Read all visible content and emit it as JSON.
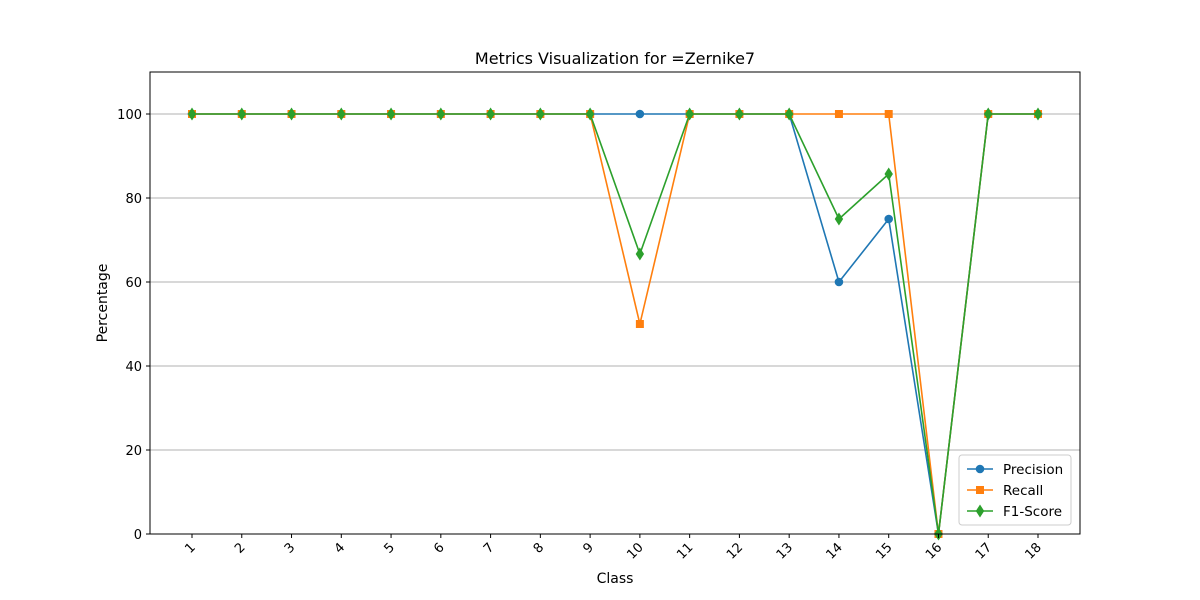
{
  "chart_data": {
    "type": "line",
    "title": "Metrics Visualization for =Zernike7",
    "xlabel": "Class",
    "ylabel": "Percentage",
    "categories": [
      "1",
      "2",
      "3",
      "4",
      "5",
      "6",
      "7",
      "8",
      "9",
      "10",
      "11",
      "12",
      "13",
      "14",
      "15",
      "16",
      "17",
      "18"
    ],
    "ylim": [
      0,
      110
    ],
    "yticks": [
      0,
      20,
      40,
      60,
      80,
      100
    ],
    "grid": "y-major",
    "legend_position": "lower right",
    "series": [
      {
        "name": "Precision",
        "color": "#1f77b4",
        "marker": "circle",
        "values": [
          100,
          100,
          100,
          100,
          100,
          100,
          100,
          100,
          100,
          100,
          100,
          100,
          100,
          60,
          75,
          0,
          100,
          100
        ]
      },
      {
        "name": "Recall",
        "color": "#ff7f0e",
        "marker": "square",
        "values": [
          100,
          100,
          100,
          100,
          100,
          100,
          100,
          100,
          100,
          50,
          100,
          100,
          100,
          100,
          100,
          0,
          100,
          100
        ]
      },
      {
        "name": "F1-Score",
        "color": "#2ca02c",
        "marker": "diamond",
        "values": [
          100,
          100,
          100,
          100,
          100,
          100,
          100,
          100,
          100,
          66.67,
          100,
          100,
          100,
          75,
          85.71,
          0,
          100,
          100
        ]
      }
    ]
  }
}
